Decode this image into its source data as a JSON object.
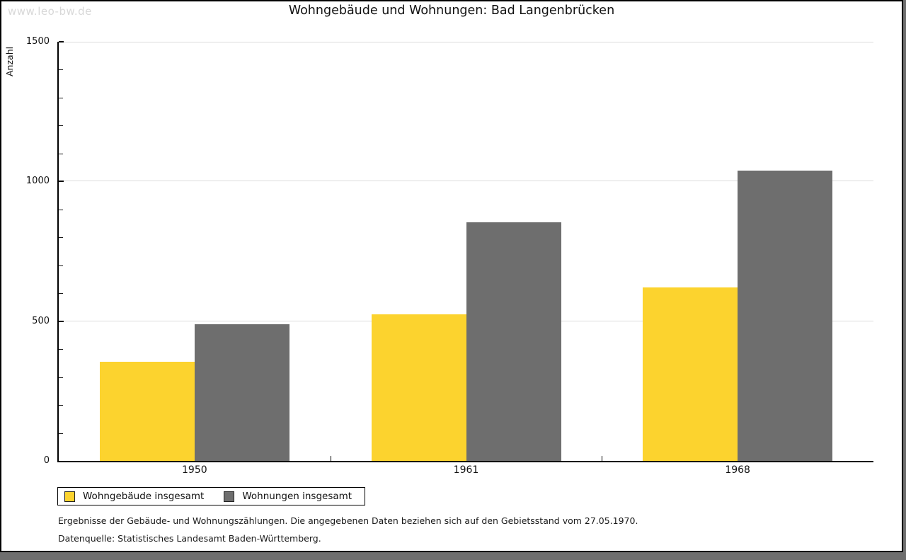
{
  "watermark": "www.leo-bw.de",
  "header": {
    "title": "Wohngebäude und Wohnungen: Bad Langenbrücken"
  },
  "chart_data": {
    "type": "bar",
    "title": "Wohngebäude und Wohnungen: Bad Langenbrücken",
    "xlabel": "",
    "ylabel": "Anzahl",
    "categories": [
      "1950",
      "1961",
      "1968"
    ],
    "series": [
      {
        "name": "Wohngebäude insgesamt",
        "color": "#fcd32e",
        "values": [
          355,
          525,
          620
        ]
      },
      {
        "name": "Wohnungen insgesamt",
        "color": "#6e6e6e",
        "values": [
          490,
          855,
          1040
        ]
      }
    ],
    "ylim": [
      0,
      1500
    ],
    "yticks": [
      0,
      500,
      1000,
      1500
    ],
    "minor_tick_step": 100,
    "grid": "horizontal-major",
    "legend_position": "bottom-left",
    "colors": {
      "grid": "#dcdcdc",
      "axis": "#000000",
      "watermark": "#d8d8d8",
      "page_shadow": "#6e6e6e"
    }
  },
  "legend": {
    "item1": "Wohngebäude insgesamt",
    "item2": "Wohnungen insgesamt"
  },
  "footer": {
    "line1": "Ergebnisse der Gebäude- und Wohnungszählungen. Die angegebenen Daten beziehen sich auf den Gebietsstand vom 27.05.1970.",
    "line2": "Datenquelle: Statistisches Landesamt Baden-Württemberg."
  }
}
